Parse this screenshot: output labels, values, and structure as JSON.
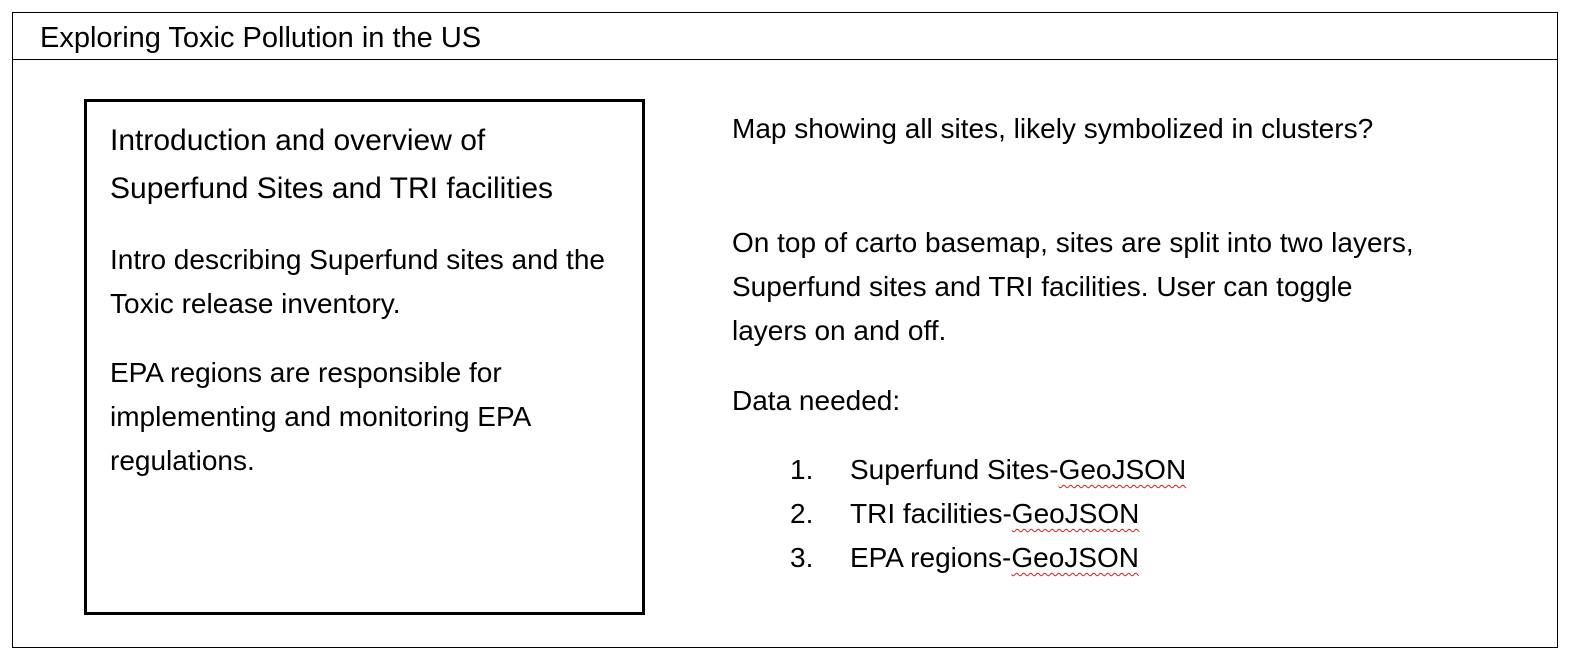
{
  "title": "Exploring Toxic Pollution in the US",
  "intro_panel": {
    "heading": "Introduction and overview of Superfund Sites and TRI facilities",
    "paragraphs": [
      "Intro describing Superfund sites and the Toxic release inventory.",
      "EPA regions are responsible for implementing and monitoring EPA regulations."
    ]
  },
  "map_panel": {
    "paragraphs": [
      "Map showing all sites, likely symbolized in clusters?",
      "On top of carto basemap, sites are split into two layers, Superfund sites and TRI facilities. User can toggle layers on and off.",
      "Data needed:"
    ],
    "data_items": [
      {
        "number": "1.",
        "name": "Superfund Sites-",
        "format": "GeoJSON"
      },
      {
        "number": "2.",
        "name": "TRI facilities-",
        "format": "GeoJSON"
      },
      {
        "number": "3.",
        "name": "EPA regions-",
        "format": "GeoJSON"
      }
    ]
  },
  "colors": {
    "border": "#000000",
    "spellcheck_underline": "#d21f1f"
  }
}
